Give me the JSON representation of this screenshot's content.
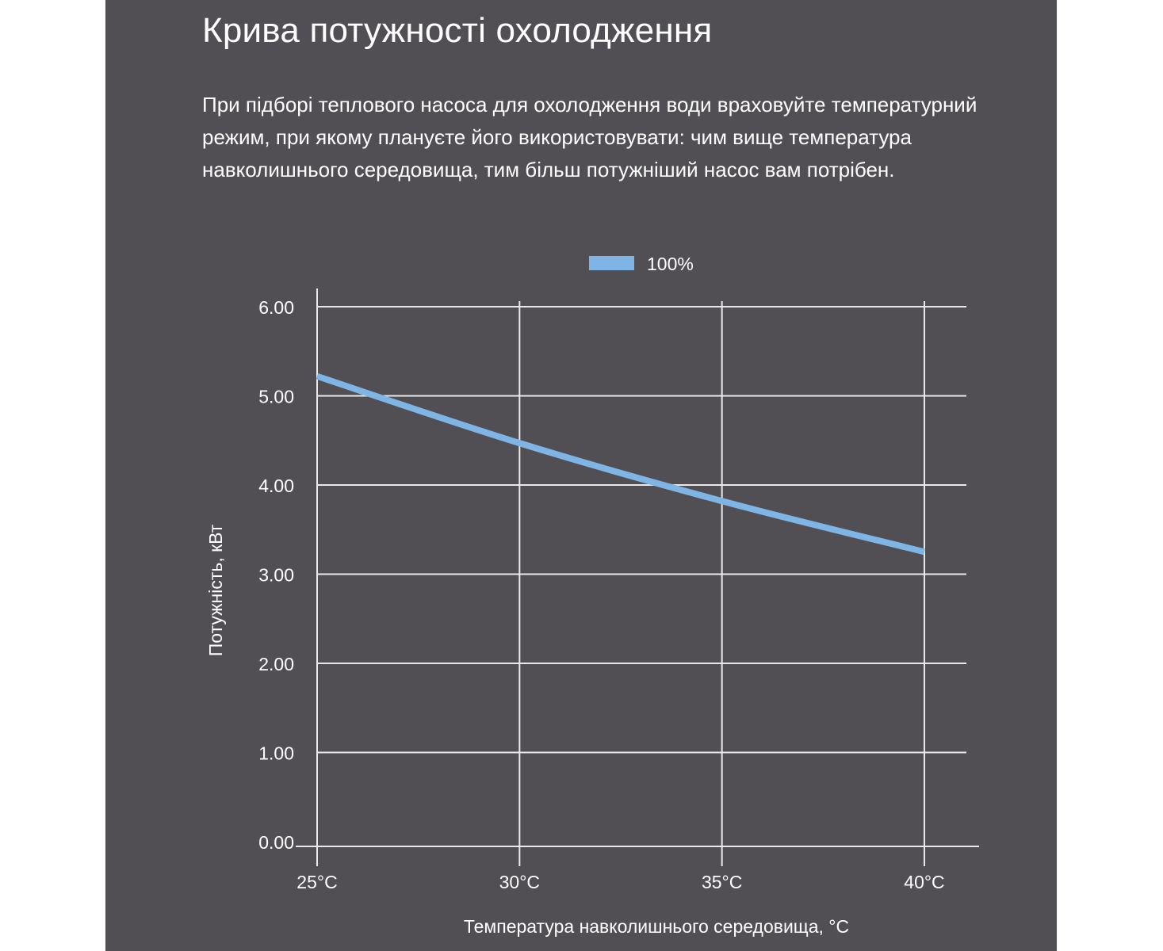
{
  "colors": {
    "background": "#514f53",
    "text": "#ffffff",
    "grid": "#e9e9e9",
    "series": "#7fb5e4"
  },
  "page": {
    "title": "Крива потужності охолодження",
    "description": "При підборі теплового насоса для охолодження води враховуйте температурний режим, при якому плануєте його використовувати: чим вище температура навколишнього середовища, тим більш потужніший насос вам потрібен."
  },
  "chart_data": {
    "type": "line",
    "categories": [
      "25°C",
      "30°C",
      "35°C",
      "40°C"
    ],
    "series": [
      {
        "name": "100%",
        "values": [
          5.22,
          4.47,
          3.82,
          3.25
        ]
      }
    ],
    "yticks": [
      "0.00",
      "1.00",
      "2.00",
      "3.00",
      "4.00",
      "5.00",
      "6.00"
    ],
    "ylim": [
      0,
      6
    ],
    "xlabel": "Температура навколишнього середовища, °C",
    "ylabel": "Потужність, кВт",
    "grid": true,
    "legend": "top-center"
  }
}
